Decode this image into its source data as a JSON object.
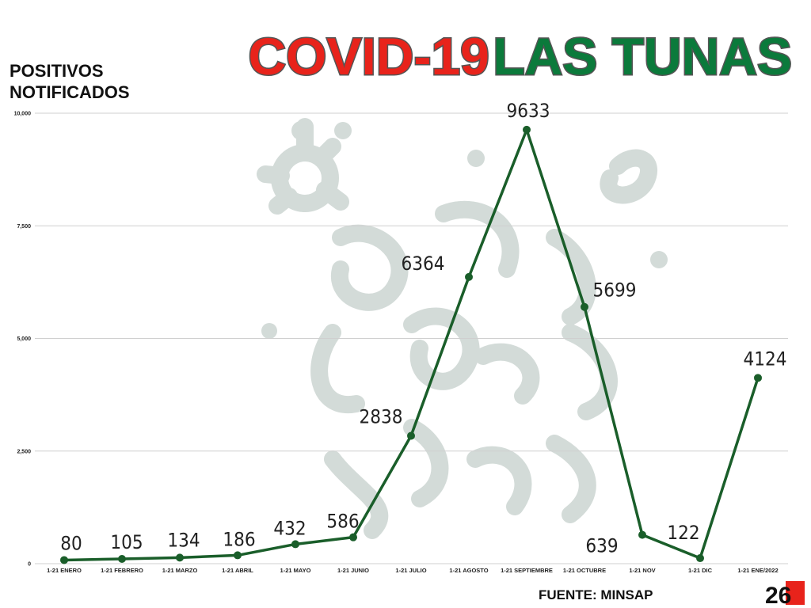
{
  "title": {
    "part1": "COVID-19",
    "part2": "LAS TUNAS",
    "color1": "#e8231b",
    "color2": "#0b7a3b"
  },
  "source": "FUENTE: MINSAP",
  "logo": "26",
  "colors": {
    "line": "#1a5e2a",
    "grid": "#cfcfcf",
    "watermark": "#d3dbd8"
  },
  "chart_data": {
    "type": "line",
    "title": "COVID-19 LAS TUNAS",
    "ylabel_lines": [
      "POSITIVOS",
      "NOTIFICADOS"
    ],
    "xlabel": "",
    "categories": [
      "1-21 ENERO",
      "1-21 FEBRERO",
      "1-21 MARZO",
      "1-21 ABRIL",
      "1-21 MAYO",
      "1-21 JUNIO",
      "1-21 JULIO",
      "1-21 AGOSTO",
      "1-21 SEPTIEMBRE",
      "1-21 OCTUBRE",
      "1-21 NOV",
      "1-21 DIC",
      "1-21 ENE/2022"
    ],
    "series": [
      {
        "values": [
          80,
          105,
          134,
          186,
          432,
          586,
          2838,
          6364,
          9633,
          5699,
          639,
          122,
          4124
        ]
      }
    ],
    "ylim": [
      0,
      10000
    ],
    "yticks": [
      0,
      2500,
      5000,
      7500,
      10000
    ],
    "ytick_labels": [
      "0",
      "2,500",
      "5,000",
      "7,500",
      "10,000"
    ],
    "grid": true,
    "legend": "none"
  }
}
